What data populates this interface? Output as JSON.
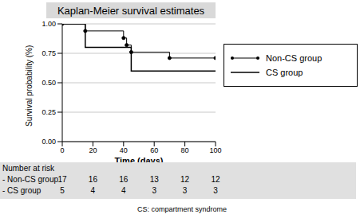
{
  "chart_data": {
    "type": "line",
    "title": "Kaplan-Meier survival estimates",
    "xlabel": "Time (days)",
    "ylabel": "Survival probability (%)",
    "xlim": [
      0,
      100
    ],
    "xticks": [
      0,
      20,
      40,
      60,
      80,
      100
    ],
    "ylim": [
      0,
      1
    ],
    "yticks": [
      {
        "value": 0,
        "label": "0.00"
      },
      {
        "value": 0.25,
        "label": "0.25"
      },
      {
        "value": 0.5,
        "label": "0.50"
      },
      {
        "value": 0.75,
        "label": "0.75"
      },
      {
        "value": 1,
        "label": "1.00"
      }
    ],
    "grid": true,
    "legend": "right",
    "series": [
      {
        "name": "Non-CS group",
        "color": "#000000",
        "line_style": "step",
        "marker": "circle",
        "x": [
          0,
          15,
          40,
          42,
          45,
          70,
          100
        ],
        "values": [
          1,
          0.94,
          0.88,
          0.82,
          0.76,
          0.71,
          0.71
        ]
      },
      {
        "name": "CS group",
        "color": "#000000",
        "line_style": "step",
        "marker": "none",
        "x": [
          0,
          15,
          45,
          100
        ],
        "values": [
          1,
          0.8,
          0.6,
          0.6
        ]
      }
    ],
    "number_at_risk": {
      "label": "Number at risk",
      "times": [
        0,
        20,
        40,
        60,
        80,
        100
      ],
      "rows": [
        {
          "name": "- Non-CS group",
          "values": [
            17,
            16,
            16,
            13,
            12,
            12
          ]
        },
        {
          "name": "- CS group",
          "values": [
            5,
            4,
            4,
            3,
            3,
            3
          ]
        }
      ]
    },
    "footnote": "CS: compartment syndrome"
  }
}
